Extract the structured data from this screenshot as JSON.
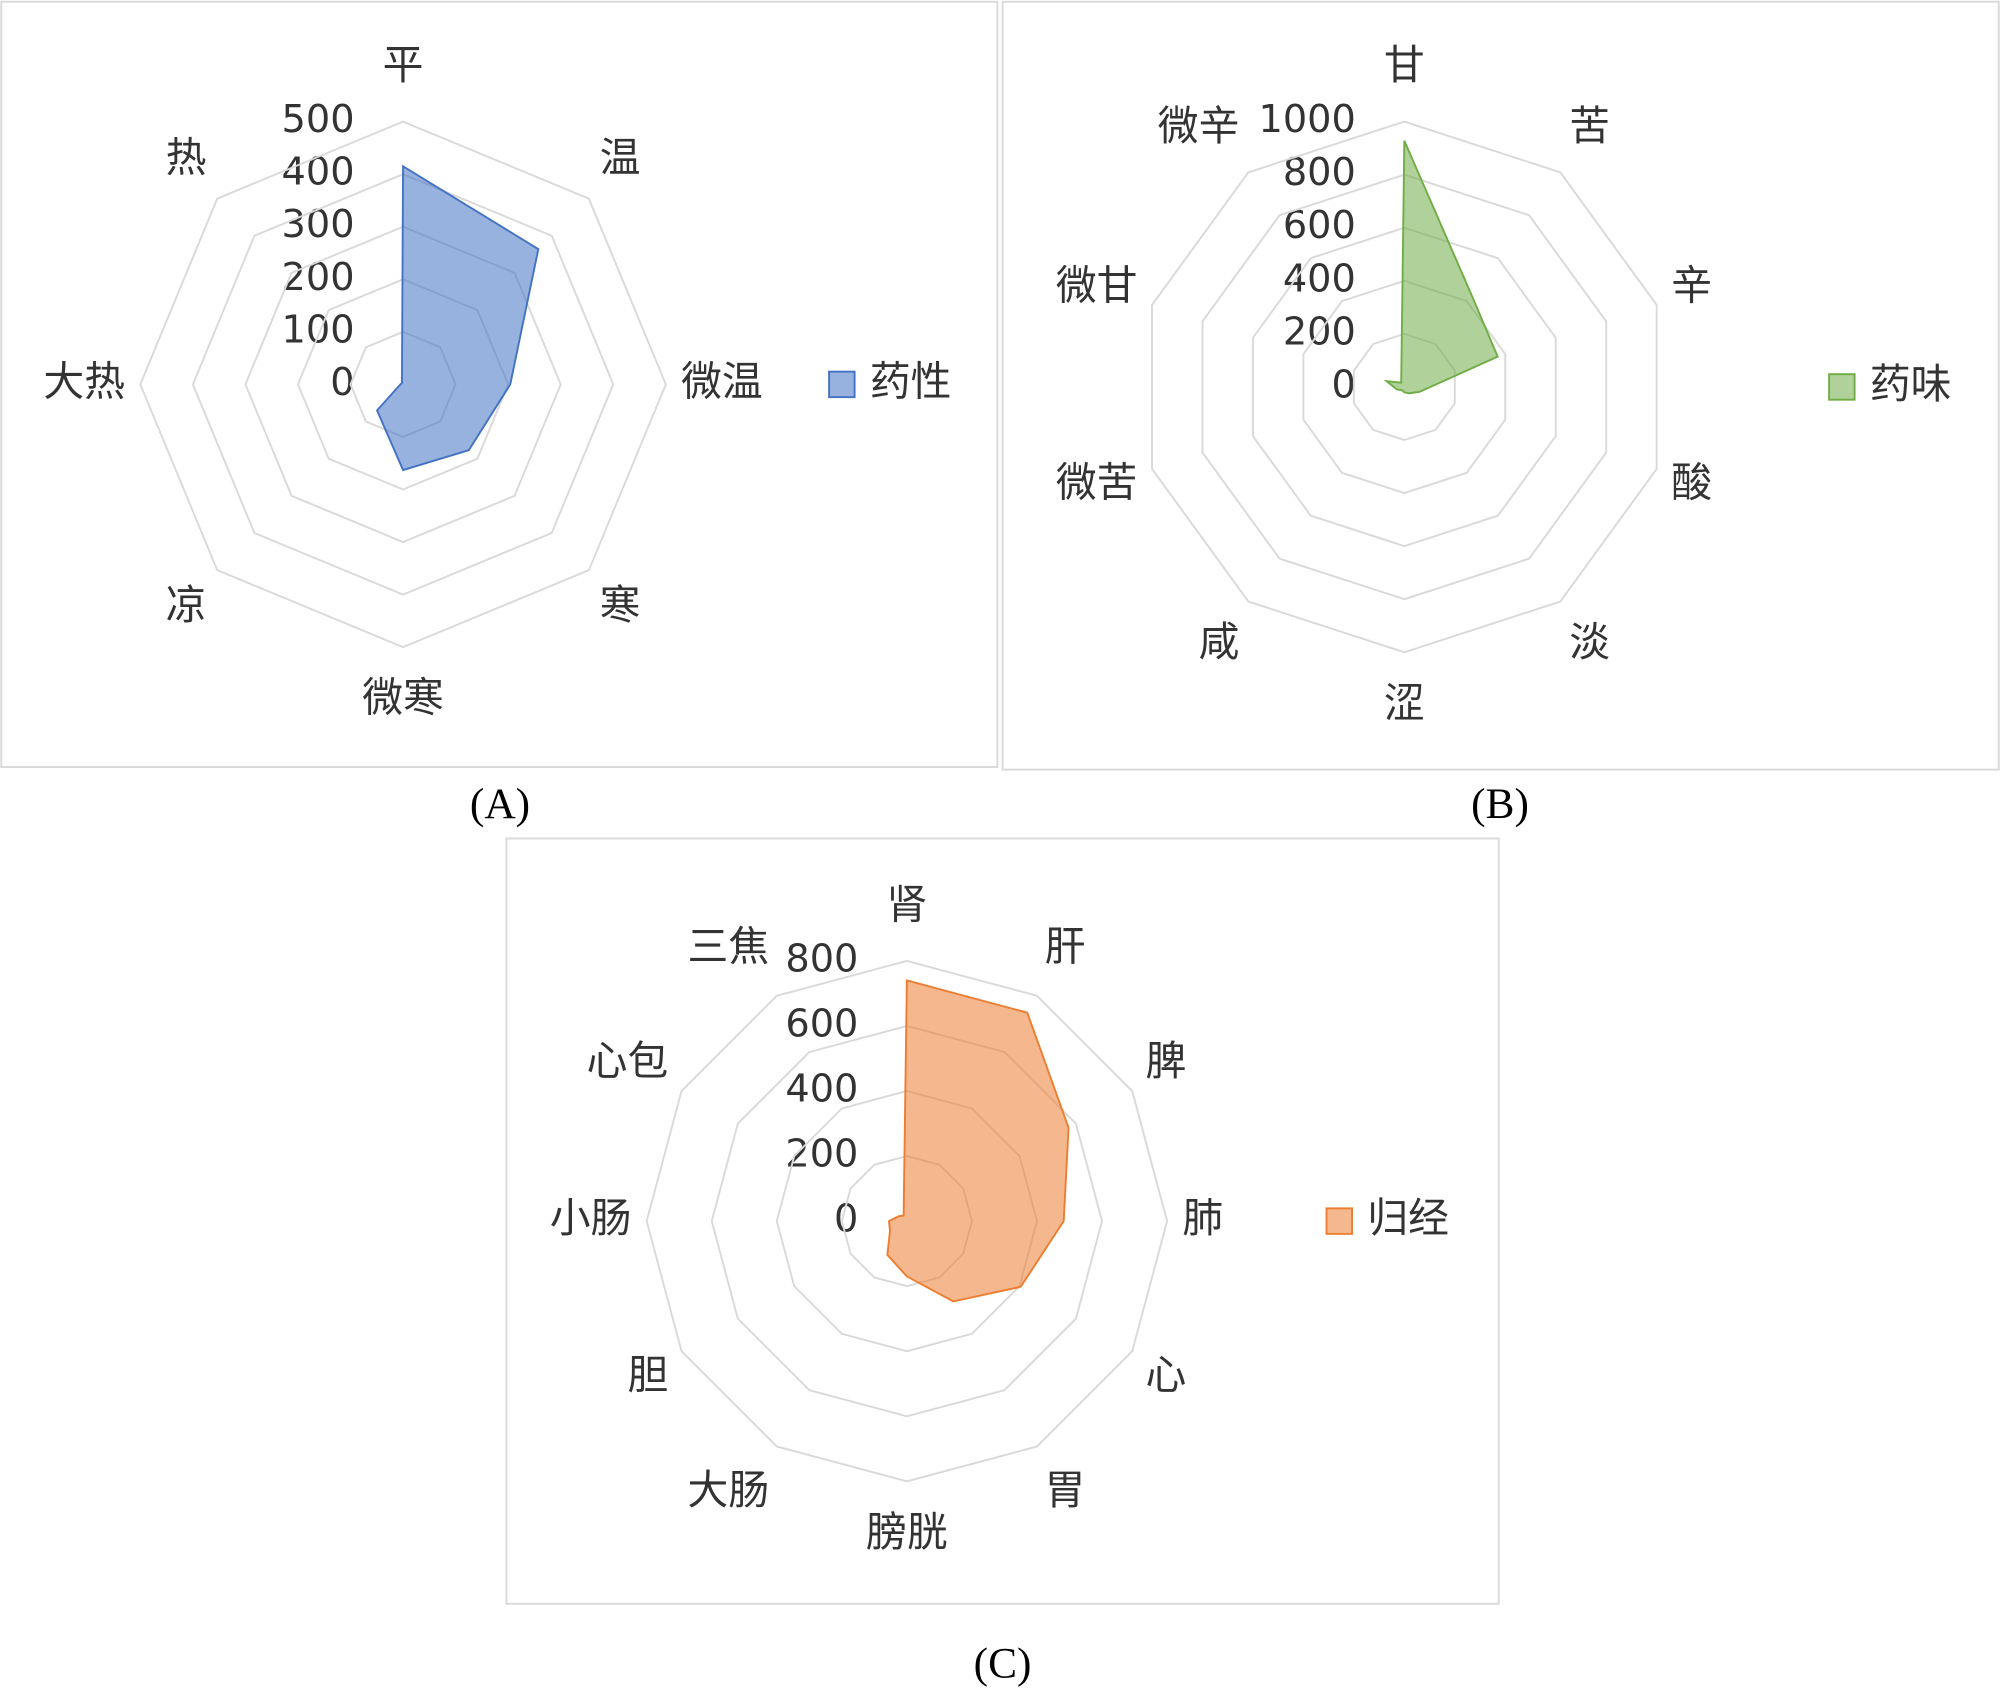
{
  "chart_data": [
    {
      "type": "radar",
      "caption": "(A)",
      "categories": [
        "平",
        "温",
        "微温",
        "寒",
        "微寒",
        "凉",
        "大热",
        "热"
      ],
      "series": [
        {
          "name": "药性",
          "color": "#4472c4",
          "values": [
            415,
            364,
            204,
            177,
            163,
            70,
            5,
            3
          ]
        }
      ],
      "ylim": [
        0,
        500
      ],
      "yticks": [
        0,
        100,
        200,
        300,
        400,
        500
      ],
      "grid": true,
      "legend": "right"
    },
    {
      "type": "radar",
      "caption": "(B)",
      "categories": [
        "甘",
        "苦",
        "辛",
        "酸",
        "淡",
        "涩",
        "咸",
        "微苦",
        "微甘",
        "微辛"
      ],
      "series": [
        {
          "name": "药味",
          "color": "#70ad47",
          "values": [
            928,
            430,
            370,
            60,
            30,
            20,
            15,
            30,
            70,
            20
          ]
        }
      ],
      "ylim": [
        0,
        1000
      ],
      "yticks": [
        0,
        200,
        400,
        600,
        800,
        1000
      ],
      "grid": true,
      "legend": "right"
    },
    {
      "type": "radar",
      "caption": "(C)",
      "categories": [
        "肾",
        "肝",
        "脾",
        "肺",
        "心",
        "胃",
        "膀胱",
        "大肠",
        "胆",
        "小肠",
        "心包",
        "三焦"
      ],
      "series": [
        {
          "name": "归经",
          "color": "#ed7d31",
          "values": [
            740,
            740,
            574,
            482,
            404,
            285,
            170,
            120,
            60,
            55,
            30,
            20
          ]
        }
      ],
      "ylim": [
        0,
        800
      ],
      "yticks": [
        0,
        200,
        400,
        600,
        800
      ],
      "grid": true,
      "legend": "right"
    }
  ]
}
